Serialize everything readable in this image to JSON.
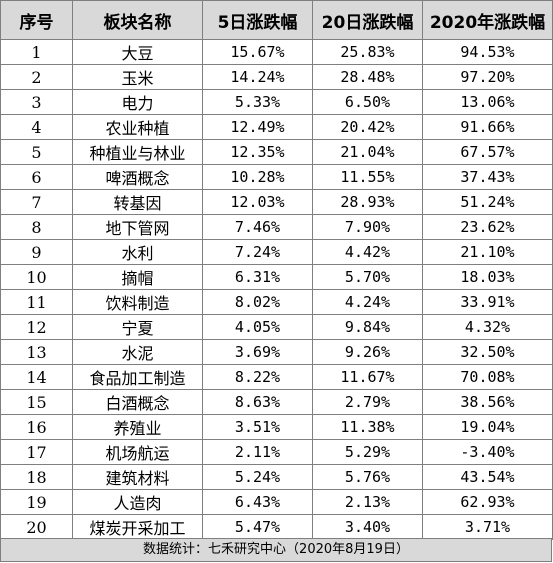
{
  "headers": [
    "序号",
    "板块名称",
    "5日涨跌幅",
    "20日涨跌幅",
    "2020年涨跌幅"
  ],
  "rows": [
    {
      "idx": "1",
      "name": "大豆",
      "d5": "15.67%",
      "d20": "25.83%",
      "y2020": "94.53%"
    },
    {
      "idx": "2",
      "name": "玉米",
      "d5": "14.24%",
      "d20": "28.48%",
      "y2020": "97.20%"
    },
    {
      "idx": "3",
      "name": "电力",
      "d5": "5.33%",
      "d20": "6.50%",
      "y2020": "13.06%"
    },
    {
      "idx": "4",
      "name": "农业种植",
      "d5": "12.49%",
      "d20": "20.42%",
      "y2020": "91.66%"
    },
    {
      "idx": "5",
      "name": "种植业与林业",
      "d5": "12.35%",
      "d20": "21.04%",
      "y2020": "67.57%"
    },
    {
      "idx": "6",
      "name": "啤酒概念",
      "d5": "10.28%",
      "d20": "11.55%",
      "y2020": "37.43%"
    },
    {
      "idx": "7",
      "name": "转基因",
      "d5": "12.03%",
      "d20": "28.93%",
      "y2020": "51.24%"
    },
    {
      "idx": "8",
      "name": "地下管网",
      "d5": "7.46%",
      "d20": "7.90%",
      "y2020": "23.62%"
    },
    {
      "idx": "9",
      "name": "水利",
      "d5": "7.24%",
      "d20": "4.42%",
      "y2020": "21.10%"
    },
    {
      "idx": "10",
      "name": "摘帽",
      "d5": "6.31%",
      "d20": "5.70%",
      "y2020": "18.03%"
    },
    {
      "idx": "11",
      "name": "饮料制造",
      "d5": "8.02%",
      "d20": "4.24%",
      "y2020": "33.91%"
    },
    {
      "idx": "12",
      "name": "宁夏",
      "d5": "4.05%",
      "d20": "9.84%",
      "y2020": "4.32%"
    },
    {
      "idx": "13",
      "name": "水泥",
      "d5": "3.69%",
      "d20": "9.26%",
      "y2020": "32.50%"
    },
    {
      "idx": "14",
      "name": "食品加工制造",
      "d5": "8.22%",
      "d20": "11.67%",
      "y2020": "70.08%"
    },
    {
      "idx": "15",
      "name": "白酒概念",
      "d5": "8.63%",
      "d20": "2.79%",
      "y2020": "38.56%"
    },
    {
      "idx": "16",
      "name": "养殖业",
      "d5": "3.51%",
      "d20": "11.38%",
      "y2020": "19.04%"
    },
    {
      "idx": "17",
      "name": "机场航运",
      "d5": "2.11%",
      "d20": "5.29%",
      "y2020": "-3.40%"
    },
    {
      "idx": "18",
      "name": "建筑材料",
      "d5": "5.24%",
      "d20": "5.76%",
      "y2020": "43.54%"
    },
    {
      "idx": "19",
      "name": "人造肉",
      "d5": "6.43%",
      "d20": "2.13%",
      "y2020": "62.93%"
    },
    {
      "idx": "20",
      "name": "煤炭开采加工",
      "d5": "5.47%",
      "d20": "3.40%",
      "y2020": "3.71%"
    }
  ],
  "footer": "数据统计：七禾研究中心（2020年8月19日）",
  "colors": {
    "header_bg": "#d9d9d9",
    "border": "#7f7f7f"
  }
}
